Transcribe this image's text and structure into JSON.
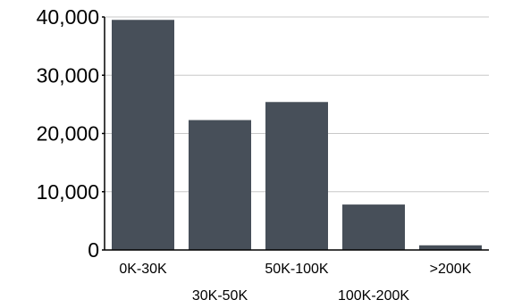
{
  "chart_data": {
    "type": "bar",
    "title": "",
    "xlabel": "",
    "ylabel": "",
    "categories": [
      "0K-30K",
      "30K-50K",
      "50K-100K",
      "100K-200K",
      ">200K"
    ],
    "values": [
      39500,
      22300,
      25400,
      7800,
      800
    ],
    "ylim": [
      0,
      40000
    ],
    "y_ticks": [
      0,
      10000,
      20000,
      30000,
      40000
    ],
    "y_tick_labels": [
      "0",
      "10,000",
      "20,000",
      "30,000",
      "40,000"
    ],
    "grid": true,
    "legend": "none",
    "colors": {
      "bar": "#474f59",
      "grid": "#c8c8c8",
      "axis": "#000000",
      "text": "#000000"
    }
  }
}
